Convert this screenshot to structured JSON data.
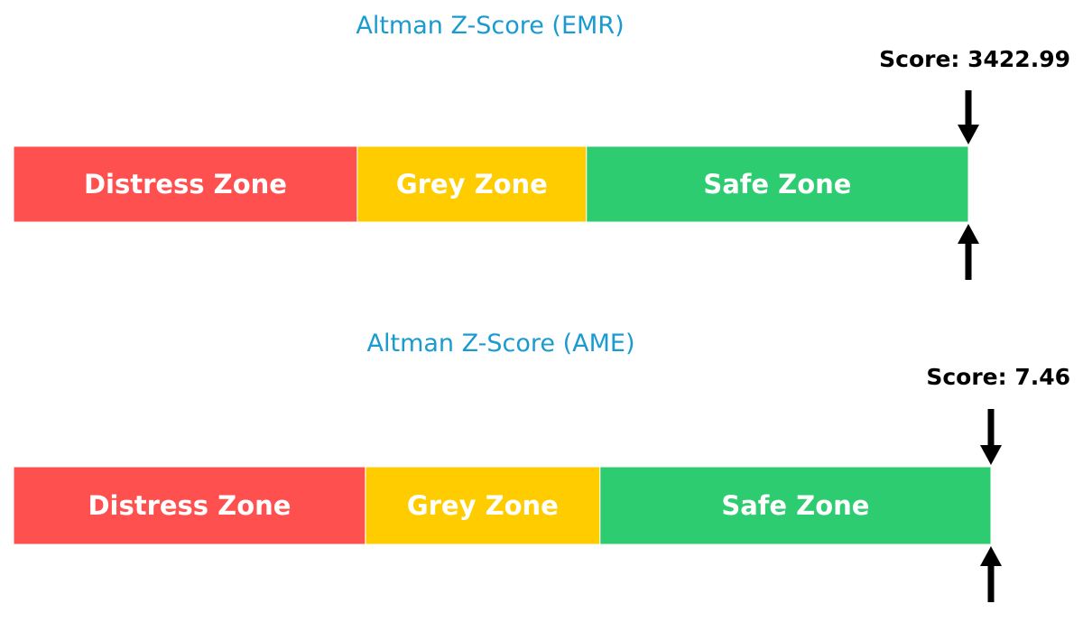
{
  "chart_data": [
    {
      "type": "gauge-bar",
      "title": "Altman Z-Score (EMR)",
      "score_label": "Score: 3422.99",
      "score": 3422.99,
      "range": [
        0,
        5
      ],
      "zones": [
        {
          "label": "Distress Zone",
          "from": 0,
          "to": 1.8,
          "color": "#ff5050"
        },
        {
          "label": "Grey Zone",
          "from": 1.8,
          "to": 3.0,
          "color": "#ffcc00"
        },
        {
          "label": "Safe Zone",
          "from": 3.0,
          "to": 5.0,
          "color": "#2ecc71"
        }
      ]
    },
    {
      "type": "gauge-bar",
      "title": "Altman Z-Score (AME)",
      "score_label": "Score: 7.46",
      "score": 7.46,
      "range": [
        0,
        5
      ],
      "zones": [
        {
          "label": "Distress Zone",
          "from": 0,
          "to": 1.8,
          "color": "#ff5050"
        },
        {
          "label": "Grey Zone",
          "from": 1.8,
          "to": 3.0,
          "color": "#ffcc00"
        },
        {
          "label": "Safe Zone",
          "from": 3.0,
          "to": 5.0,
          "color": "#2ecc71"
        }
      ]
    }
  ]
}
